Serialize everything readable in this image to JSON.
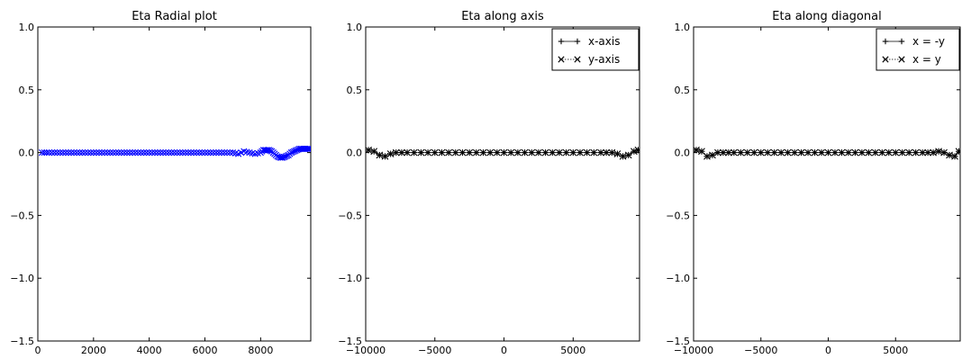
{
  "chart_data": [
    {
      "type": "scatter",
      "title": "Eta Radial plot",
      "xlabel": "",
      "ylabel": "",
      "xlim": [
        0,
        9800
      ],
      "ylim": [
        -1.5,
        1.0
      ],
      "xticks": [
        "0",
        "2000",
        "4000",
        "6000",
        "8000"
      ],
      "xtick_values": [
        0,
        2000,
        4000,
        6000,
        8000
      ],
      "yticks": [
        "1.0",
        "0.5",
        "0.0",
        "−0.5",
        "−1.0",
        "−1.5"
      ],
      "ytick_values": [
        1.0,
        0.5,
        0.0,
        -0.5,
        -1.0,
        -1.5
      ],
      "legend": null,
      "series": [
        {
          "marker": "x",
          "color": "#0000ff",
          "x": [
            150,
            400,
            700,
            1000,
            1300,
            1600,
            1900,
            2200,
            2500,
            2800,
            3100,
            3400,
            3700,
            4000,
            4300,
            4600,
            4900,
            5200,
            5500,
            5800,
            6100,
            6400,
            6700,
            7000,
            7200,
            7400,
            7600,
            7800,
            8000,
            8100,
            8200,
            8300,
            8400,
            8500,
            8600,
            8700,
            8800,
            8900,
            9000,
            9100,
            9200,
            9300,
            9400,
            9500,
            9600,
            9700,
            9780
          ],
          "y": [
            0.0,
            0.0,
            0.0,
            0.0,
            0.0,
            0.0,
            0.0,
            0.0,
            0.0,
            0.0,
            0.0,
            0.0,
            0.0,
            0.0,
            0.0,
            0.0,
            0.0,
            0.0,
            0.0,
            0.0,
            0.0,
            0.0,
            0.0,
            0.0,
            -0.01,
            0.01,
            0.0,
            -0.01,
            0.0,
            0.02,
            0.02,
            0.02,
            0.01,
            -0.01,
            -0.03,
            -0.04,
            -0.04,
            -0.03,
            -0.02,
            0.0,
            0.01,
            0.02,
            0.03,
            0.03,
            0.03,
            0.03,
            0.03
          ]
        }
      ]
    },
    {
      "type": "scatter",
      "title": "Eta along axis",
      "xlabel": "",
      "ylabel": "",
      "xlim": [
        -10000,
        9800
      ],
      "ylim": [
        -1.5,
        1.0
      ],
      "xticks": [
        "−10000",
        "−5000",
        "0",
        "5000"
      ],
      "xtick_values": [
        -10000,
        -5000,
        0,
        5000
      ],
      "yticks": [
        "1.0",
        "0.5",
        "0.0",
        "−0.5",
        "−1.0",
        "−1.5"
      ],
      "ytick_values": [
        1.0,
        0.5,
        0.0,
        -0.5,
        -1.0,
        -1.5
      ],
      "legend": "top-right",
      "series": [
        {
          "name": "x-axis",
          "marker": "+",
          "color": "#000000",
          "x": [
            -9800,
            -9400,
            -9000,
            -8600,
            -8200,
            -7800,
            -7400,
            -7000,
            -6500,
            -6000,
            -5500,
            -5000,
            -4500,
            -4000,
            -3500,
            -3000,
            -2500,
            -2000,
            -1500,
            -1000,
            -500,
            0,
            500,
            1000,
            1500,
            2000,
            2500,
            3000,
            3500,
            4000,
            4500,
            5000,
            5500,
            6000,
            6500,
            7000,
            7400,
            7800,
            8200,
            8600,
            9000,
            9400,
            9700
          ],
          "y": [
            0.02,
            0.01,
            -0.02,
            -0.03,
            -0.01,
            0.0,
            0.0,
            0.0,
            0.0,
            0.0,
            0.0,
            0.0,
            0.0,
            0.0,
            0.0,
            0.0,
            0.0,
            0.0,
            0.0,
            0.0,
            0.0,
            0.0,
            0.0,
            0.0,
            0.0,
            0.0,
            0.0,
            0.0,
            0.0,
            0.0,
            0.0,
            0.0,
            0.0,
            0.0,
            0.0,
            0.0,
            0.0,
            0.0,
            -0.01,
            -0.03,
            -0.02,
            0.01,
            0.02
          ]
        },
        {
          "name": "y-axis",
          "marker": "x",
          "color": "#000000",
          "x": [
            -9800,
            -9400,
            -9000,
            -8600,
            -8200,
            -7800,
            -7400,
            -7000,
            -6500,
            -6000,
            -5500,
            -5000,
            -4500,
            -4000,
            -3500,
            -3000,
            -2500,
            -2000,
            -1500,
            -1000,
            -500,
            0,
            500,
            1000,
            1500,
            2000,
            2500,
            3000,
            3500,
            4000,
            4500,
            5000,
            5500,
            6000,
            6500,
            7000,
            7400,
            7800,
            8200,
            8600,
            9000,
            9400,
            9700
          ],
          "y": [
            0.02,
            0.01,
            -0.02,
            -0.03,
            -0.01,
            0.0,
            0.0,
            0.0,
            0.0,
            0.0,
            0.0,
            0.0,
            0.0,
            0.0,
            0.0,
            0.0,
            0.0,
            0.0,
            0.0,
            0.0,
            0.0,
            0.0,
            0.0,
            0.0,
            0.0,
            0.0,
            0.0,
            0.0,
            0.0,
            0.0,
            0.0,
            0.0,
            0.0,
            0.0,
            0.0,
            0.0,
            0.0,
            0.0,
            -0.01,
            -0.03,
            -0.02,
            0.01,
            0.02
          ]
        }
      ]
    },
    {
      "type": "scatter",
      "title": "Eta along diagonal",
      "xlabel": "",
      "ylabel": "",
      "xlim": [
        -10000,
        9800
      ],
      "ylim": [
        -1.5,
        1.0
      ],
      "xticks": [
        "−10000",
        "−5000",
        "0",
        "5000"
      ],
      "xtick_values": [
        -10000,
        -5000,
        0,
        5000
      ],
      "yticks": [
        "1.0",
        "0.5",
        "0.0",
        "−0.5",
        "−1.0",
        "−1.5"
      ],
      "ytick_values": [
        1.0,
        0.5,
        0.0,
        -0.5,
        -1.0,
        -1.5
      ],
      "legend": "top-right",
      "series": [
        {
          "name": "x = -y",
          "marker": "+",
          "color": "#000000",
          "x": [
            -9800,
            -9400,
            -9000,
            -8600,
            -8200,
            -7800,
            -7400,
            -7000,
            -6500,
            -6000,
            -5500,
            -5000,
            -4500,
            -4000,
            -3500,
            -3000,
            -2500,
            -2000,
            -1500,
            -1000,
            -500,
            0,
            500,
            1000,
            1500,
            2000,
            2500,
            3000,
            3500,
            4000,
            4500,
            5000,
            5500,
            6000,
            6500,
            7000,
            7400,
            7800,
            8200,
            8600,
            9000,
            9400,
            9700
          ],
          "y": [
            0.02,
            0.01,
            -0.03,
            -0.02,
            0.0,
            0.0,
            0.0,
            0.0,
            0.0,
            0.0,
            0.0,
            0.0,
            0.0,
            0.0,
            0.0,
            0.0,
            0.0,
            0.0,
            0.0,
            0.0,
            0.0,
            0.0,
            0.0,
            0.0,
            0.0,
            0.0,
            0.0,
            0.0,
            0.0,
            0.0,
            0.0,
            0.0,
            0.0,
            0.0,
            0.0,
            0.0,
            0.0,
            0.0,
            0.01,
            0.0,
            -0.02,
            -0.03,
            0.01
          ]
        },
        {
          "name": "x = y",
          "marker": "x",
          "color": "#000000",
          "x": [
            -9800,
            -9400,
            -9000,
            -8600,
            -8200,
            -7800,
            -7400,
            -7000,
            -6500,
            -6000,
            -5500,
            -5000,
            -4500,
            -4000,
            -3500,
            -3000,
            -2500,
            -2000,
            -1500,
            -1000,
            -500,
            0,
            500,
            1000,
            1500,
            2000,
            2500,
            3000,
            3500,
            4000,
            4500,
            5000,
            5500,
            6000,
            6500,
            7000,
            7400,
            7800,
            8200,
            8600,
            9000,
            9400,
            9700
          ],
          "y": [
            0.02,
            0.01,
            -0.03,
            -0.02,
            0.0,
            0.0,
            0.0,
            0.0,
            0.0,
            0.0,
            0.0,
            0.0,
            0.0,
            0.0,
            0.0,
            0.0,
            0.0,
            0.0,
            0.0,
            0.0,
            0.0,
            0.0,
            0.0,
            0.0,
            0.0,
            0.0,
            0.0,
            0.0,
            0.0,
            0.0,
            0.0,
            0.0,
            0.0,
            0.0,
            0.0,
            0.0,
            0.0,
            0.0,
            0.01,
            0.0,
            -0.02,
            -0.03,
            0.01
          ]
        }
      ]
    }
  ]
}
